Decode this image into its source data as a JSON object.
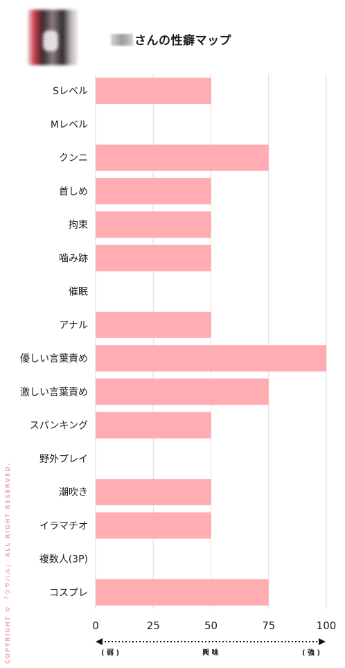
{
  "header": {
    "avatar_icon": "blurred-avatar",
    "title": "さんの性癖マップ"
  },
  "chart_data": {
    "type": "bar",
    "orientation": "horizontal",
    "categories": [
      "Sレベル",
      "Mレベル",
      "クンニ",
      "首しめ",
      "拘束",
      "噛み跡",
      "催眠",
      "アナル",
      "優しい言葉責め",
      "激しい言葉責め",
      "スパンキング",
      "野外プレイ",
      "潮吹き",
      "イラマチオ",
      "複数人(3P)",
      "コスプレ"
    ],
    "values": [
      50,
      0,
      75,
      50,
      50,
      50,
      0,
      50,
      100,
      75,
      50,
      0,
      50,
      50,
      0,
      75
    ],
    "xlim": [
      0,
      100
    ],
    "xticks": [
      "0",
      "25",
      "50",
      "75",
      "100"
    ],
    "grid": true,
    "bar_color": "#ffacb3"
  },
  "scale": {
    "weak": "( 弱 )",
    "interest": "興 味",
    "strong": "( 強 )"
  },
  "copyright": "COPYRIGHT © 「ウラハル」 ALL RIGHT RESERVED."
}
